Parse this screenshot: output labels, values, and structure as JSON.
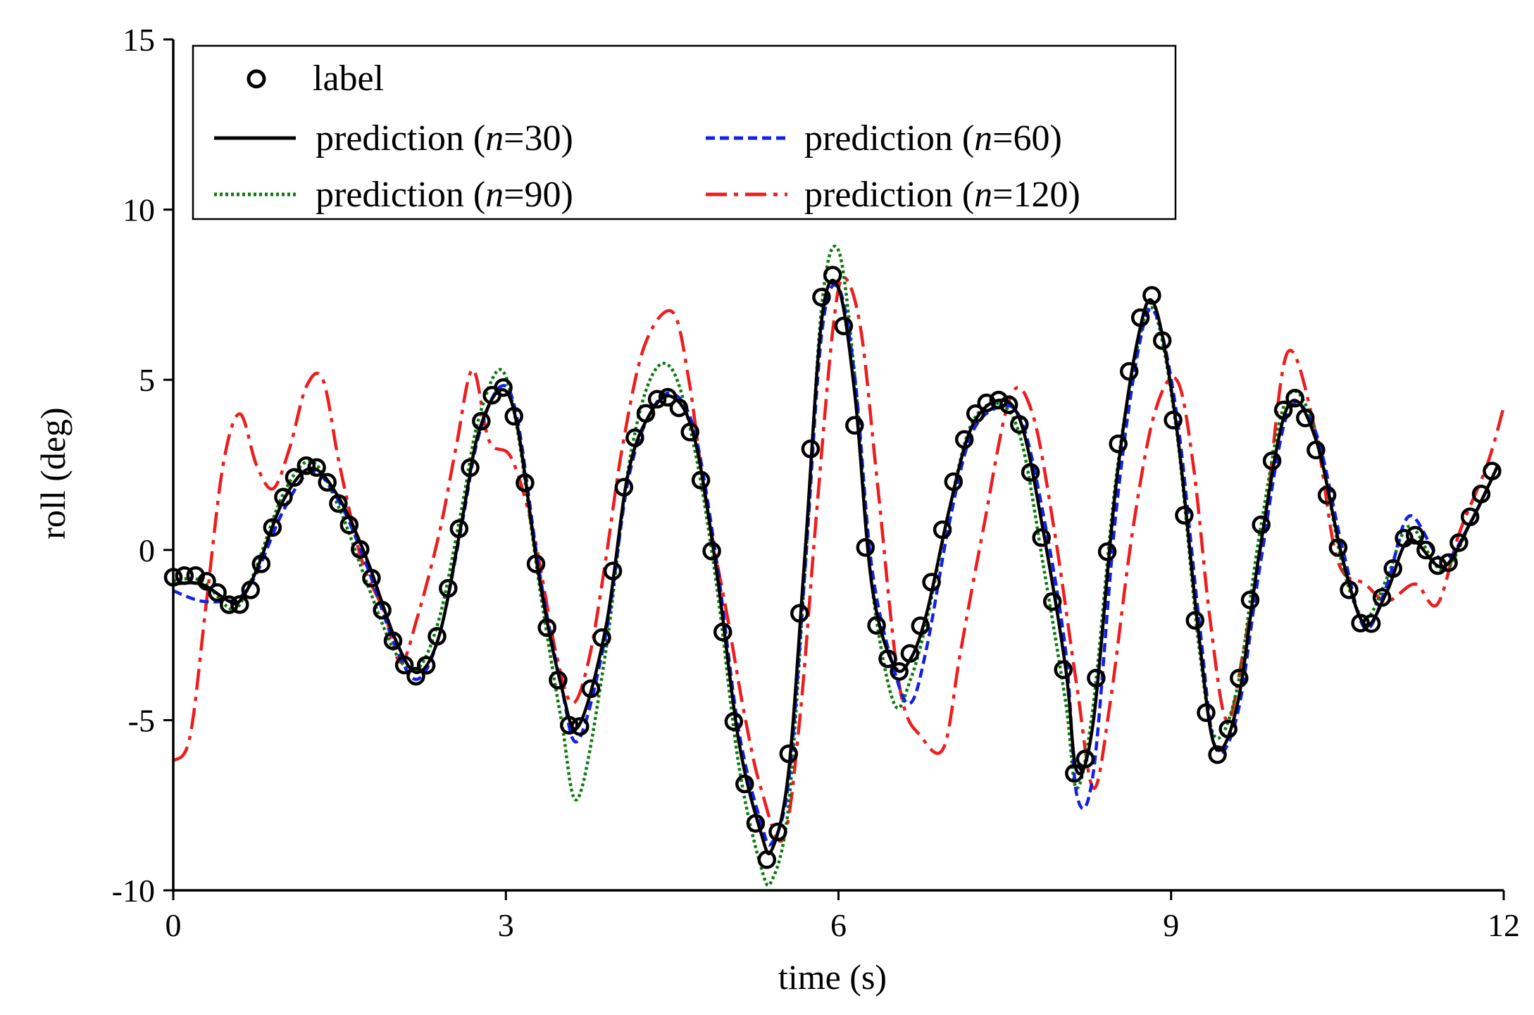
{
  "chart_data": {
    "type": "line",
    "title": "",
    "xlabel": "time (s)",
    "ylabel": "roll (deg)",
    "xlim": [
      0,
      12
    ],
    "ylim": [
      -10,
      15
    ],
    "xticks": [
      0,
      3,
      6,
      9,
      12
    ],
    "xtick_labels": [
      "0",
      "3",
      "6",
      "9",
      "12"
    ],
    "yticks": [
      -10,
      -5,
      0,
      5,
      10,
      15
    ],
    "ytick_labels": [
      "-10",
      "-5",
      "0",
      "5",
      "10",
      "15"
    ],
    "grid": false,
    "legend_position": "top-left",
    "series": [
      {
        "name": "label",
        "style": "markers-open-circle",
        "color": "#000000",
        "x": [
          0.0,
          0.25,
          0.5,
          0.6,
          0.75,
          1.0,
          1.25,
          1.5,
          1.75,
          2.0,
          2.2,
          2.4,
          2.6,
          2.75,
          2.95,
          3.1,
          3.3,
          3.5,
          3.65,
          3.9,
          4.1,
          4.3,
          4.5,
          4.7,
          4.9,
          5.1,
          5.3,
          5.4,
          5.55,
          5.7,
          5.85,
          6.0,
          6.15,
          6.3,
          6.5,
          6.65,
          6.8,
          7.0,
          7.2,
          7.45,
          7.65,
          7.85,
          8.05,
          8.15,
          8.3,
          8.5,
          8.7,
          8.85,
          9.05,
          9.25,
          9.4,
          9.6,
          9.8,
          10.05,
          10.3,
          10.55,
          10.75,
          10.95,
          11.15,
          11.45,
          11.7,
          11.95
        ],
        "y": [
          -0.8,
          -0.8,
          -1.6,
          -1.6,
          -0.8,
          1.6,
          2.5,
          1.3,
          -0.5,
          -2.8,
          -3.7,
          -2.3,
          1.0,
          3.5,
          4.8,
          3.5,
          -1.0,
          -4.2,
          -5.3,
          -2.0,
          2.5,
          4.2,
          4.4,
          3.0,
          -1.0,
          -6.0,
          -8.5,
          -9.0,
          -6.0,
          0.5,
          7.5,
          7.5,
          3.5,
          -1.5,
          -3.5,
          -3.0,
          -1.5,
          1.5,
          3.8,
          4.4,
          3.5,
          0.0,
          -4.0,
          -6.8,
          -4.5,
          2.5,
          6.5,
          7.3,
          3.0,
          -3.0,
          -6.0,
          -4.0,
          0.5,
          4.4,
          3.0,
          -0.5,
          -2.3,
          -1.0,
          0.5,
          -0.5,
          1.0,
          2.7
        ]
      },
      {
        "name": "prediction (n=30)",
        "style": "solid",
        "color": "#000000",
        "x": [
          0.0,
          0.25,
          0.5,
          0.6,
          0.75,
          1.0,
          1.25,
          1.5,
          1.75,
          2.0,
          2.2,
          2.4,
          2.6,
          2.75,
          2.95,
          3.1,
          3.3,
          3.5,
          3.65,
          3.9,
          4.1,
          4.3,
          4.5,
          4.7,
          4.9,
          5.1,
          5.3,
          5.4,
          5.55,
          5.7,
          5.85,
          6.0,
          6.15,
          6.3,
          6.5,
          6.65,
          6.8,
          7.0,
          7.2,
          7.45,
          7.65,
          7.85,
          8.05,
          8.15,
          8.3,
          8.5,
          8.7,
          8.85,
          9.05,
          9.25,
          9.4,
          9.6,
          9.8,
          10.05,
          10.3,
          10.55,
          10.75,
          10.95,
          11.15,
          11.45,
          11.7,
          11.95
        ],
        "y": [
          -1.0,
          -1.0,
          -1.5,
          -1.5,
          -0.6,
          1.5,
          2.4,
          1.5,
          -0.3,
          -2.6,
          -3.6,
          -2.5,
          0.8,
          3.4,
          4.7,
          3.7,
          -0.8,
          -4.0,
          -5.2,
          -2.3,
          2.2,
          4.0,
          4.5,
          3.3,
          -0.6,
          -5.6,
          -8.3,
          -8.8,
          -6.5,
          0.0,
          6.8,
          7.7,
          4.5,
          -1.0,
          -3.4,
          -3.2,
          -1.8,
          1.2,
          3.6,
          4.4,
          3.7,
          0.5,
          -3.5,
          -6.5,
          -5.0,
          1.8,
          6.2,
          7.2,
          3.6,
          -2.5,
          -5.8,
          -4.5,
          0.0,
          4.2,
          3.3,
          -0.3,
          -2.2,
          -1.2,
          0.3,
          -0.5,
          0.8,
          2.5
        ]
      },
      {
        "name": "prediction (n=60)",
        "style": "dashed",
        "color": "#1020e8",
        "x": [
          0.0,
          0.25,
          0.5,
          0.6,
          0.75,
          1.0,
          1.25,
          1.5,
          1.75,
          2.0,
          2.2,
          2.4,
          2.6,
          2.75,
          2.95,
          3.1,
          3.3,
          3.5,
          3.65,
          3.9,
          4.1,
          4.3,
          4.5,
          4.7,
          4.9,
          5.1,
          5.3,
          5.4,
          5.55,
          5.7,
          5.85,
          6.0,
          6.15,
          6.3,
          6.5,
          6.65,
          6.8,
          7.0,
          7.2,
          7.45,
          7.65,
          7.85,
          8.05,
          8.15,
          8.3,
          8.5,
          8.7,
          8.85,
          9.05,
          9.25,
          9.4,
          9.6,
          9.8,
          10.05,
          10.3,
          10.55,
          10.75,
          10.95,
          11.15,
          11.45,
          11.7,
          11.95
        ],
        "y": [
          -1.2,
          -1.5,
          -1.5,
          -1.4,
          -0.7,
          1.2,
          2.3,
          1.4,
          -0.5,
          -2.8,
          -3.8,
          -2.5,
          0.7,
          3.3,
          4.8,
          3.9,
          -0.6,
          -4.0,
          -5.6,
          -2.5,
          2.0,
          4.0,
          4.6,
          3.5,
          -0.3,
          -5.3,
          -8.0,
          -8.6,
          -6.8,
          -0.5,
          6.4,
          7.7,
          5.0,
          -0.5,
          -3.5,
          -4.5,
          -2.8,
          0.8,
          3.4,
          4.2,
          3.8,
          1.0,
          -3.0,
          -7.2,
          -6.5,
          1.0,
          5.8,
          7.0,
          4.0,
          -2.0,
          -5.8,
          -4.8,
          -0.5,
          4.0,
          3.5,
          0.0,
          -2.3,
          -1.0,
          1.0,
          -0.3,
          0.8,
          2.5
        ]
      },
      {
        "name": "prediction (n=90)",
        "style": "dotted",
        "color": "#0a7a0a",
        "x": [
          0.0,
          0.25,
          0.5,
          0.6,
          0.75,
          1.0,
          1.25,
          1.5,
          1.75,
          2.0,
          2.2,
          2.4,
          2.6,
          2.75,
          2.95,
          3.1,
          3.3,
          3.5,
          3.65,
          3.9,
          4.1,
          4.3,
          4.5,
          4.7,
          4.9,
          5.1,
          5.3,
          5.4,
          5.55,
          5.7,
          5.85,
          6.0,
          6.15,
          6.3,
          6.5,
          6.65,
          6.8,
          7.0,
          7.2,
          7.45,
          7.65,
          7.85,
          8.05,
          8.15,
          8.3,
          8.5,
          8.7,
          8.85,
          9.05,
          9.25,
          9.4,
          9.6,
          9.8,
          10.05,
          10.3,
          10.55,
          10.75,
          10.95,
          11.15,
          11.45,
          11.7,
          11.95
        ],
        "y": [
          -0.9,
          -0.9,
          -1.7,
          -1.6,
          -0.5,
          1.7,
          2.6,
          1.2,
          -1.0,
          -3.0,
          -3.5,
          -2.0,
          1.2,
          3.8,
          5.3,
          3.6,
          -1.0,
          -5.0,
          -7.3,
          -3.0,
          2.3,
          5.0,
          5.3,
          3.0,
          -1.0,
          -6.3,
          -9.3,
          -9.7,
          -7.5,
          -0.5,
          7.2,
          8.8,
          5.0,
          -1.0,
          -4.5,
          -3.8,
          -2.0,
          1.2,
          3.7,
          4.3,
          3.2,
          -0.5,
          -4.5,
          -7.0,
          -4.5,
          2.0,
          6.0,
          7.0,
          3.5,
          -2.8,
          -5.5,
          -4.0,
          0.5,
          4.5,
          3.5,
          -0.5,
          -2.0,
          -0.8,
          0.7,
          -0.6,
          0.8,
          2.5
        ]
      },
      {
        "name": "prediction (n=120)",
        "style": "dash-dot",
        "color": "#ee1c1c",
        "x": [
          0.0,
          0.15,
          0.3,
          0.45,
          0.6,
          0.75,
          0.9,
          1.05,
          1.2,
          1.35,
          1.5,
          1.7,
          1.9,
          2.05,
          2.2,
          2.4,
          2.55,
          2.7,
          2.85,
          3.05,
          3.25,
          3.45,
          3.6,
          3.75,
          3.9,
          4.05,
          4.25,
          4.5,
          4.65,
          4.8,
          5.0,
          5.15,
          5.3,
          5.5,
          5.65,
          5.8,
          5.95,
          6.05,
          6.2,
          6.35,
          6.55,
          6.75,
          6.95,
          7.1,
          7.3,
          7.55,
          7.75,
          7.95,
          8.15,
          8.3,
          8.45,
          8.65,
          8.85,
          9.05,
          9.2,
          9.35,
          9.5,
          9.65,
          9.85,
          10.05,
          10.3,
          10.5,
          10.75,
          10.95,
          11.2,
          11.4,
          11.6,
          11.85,
          12.0
        ],
        "y": [
          -6.2,
          -5.5,
          -1.5,
          2.5,
          4.0,
          2.5,
          1.8,
          3.0,
          4.8,
          5.0,
          2.5,
          -0.3,
          -1.8,
          -3.3,
          -2.0,
          0.5,
          3.0,
          5.3,
          3.2,
          2.7,
          0.5,
          -3.0,
          -4.5,
          -3.2,
          -0.3,
          3.0,
          6.0,
          7.0,
          5.0,
          1.5,
          -2.0,
          -4.8,
          -7.0,
          -8.5,
          -5.0,
          1.0,
          6.5,
          8.0,
          6.5,
          2.0,
          -4.0,
          -5.5,
          -5.8,
          -3.0,
          0.5,
          4.5,
          4.0,
          0.5,
          -4.0,
          -7.0,
          -4.5,
          0.5,
          4.0,
          5.0,
          2.5,
          -2.0,
          -5.0,
          -3.0,
          1.0,
          5.8,
          3.5,
          -0.3,
          -1.0,
          -1.5,
          -1.0,
          -1.6,
          0.5,
          2.5,
          4.2
        ]
      }
    ],
    "legend": {
      "entries": [
        "label",
        "prediction (n=30)",
        "prediction (n=60)",
        "prediction (n=90)",
        "prediction (n=120)"
      ],
      "label_text": "label",
      "prediction_prefix": "prediction (",
      "n_symbol": "n",
      "n30_suffix": "=30)",
      "n60_suffix": "=60)",
      "n90_suffix": "=90)",
      "n120_suffix": "=120)"
    }
  }
}
